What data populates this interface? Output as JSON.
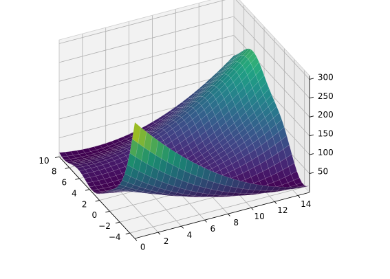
{
  "chart_data": {
    "type": "surface3d",
    "title": "",
    "xlabel": "",
    "ylabel": "",
    "zlabel": "",
    "colormap": "viridis",
    "xlim": [
      -5,
      10
    ],
    "ylim": [
      0,
      15
    ],
    "zlim": [
      0,
      310
    ],
    "x_ticks": [
      -4,
      -2,
      0,
      2,
      4,
      6,
      8,
      10
    ],
    "x_tick_labels": [
      "−4",
      "−2",
      "0",
      "2",
      "4",
      "6",
      "8",
      "10"
    ],
    "y_ticks": [
      0,
      2,
      4,
      6,
      8,
      10,
      12,
      14
    ],
    "y_tick_labels": [
      "0",
      "2",
      "4",
      "6",
      "8",
      "10",
      "12",
      "14"
    ],
    "z_ticks": [
      50,
      100,
      150,
      200,
      250,
      300
    ],
    "z_tick_labels": [
      "50",
      "100",
      "150",
      "200",
      "250",
      "300"
    ],
    "grid": true,
    "x_range": [
      -5,
      10
    ],
    "y_range": [
      0,
      15
    ],
    "z_range_approx": [
      0,
      308
    ],
    "grid_resolution": 30,
    "view": {
      "elevation_deg": 40,
      "azimuth_deg": -20
    }
  }
}
